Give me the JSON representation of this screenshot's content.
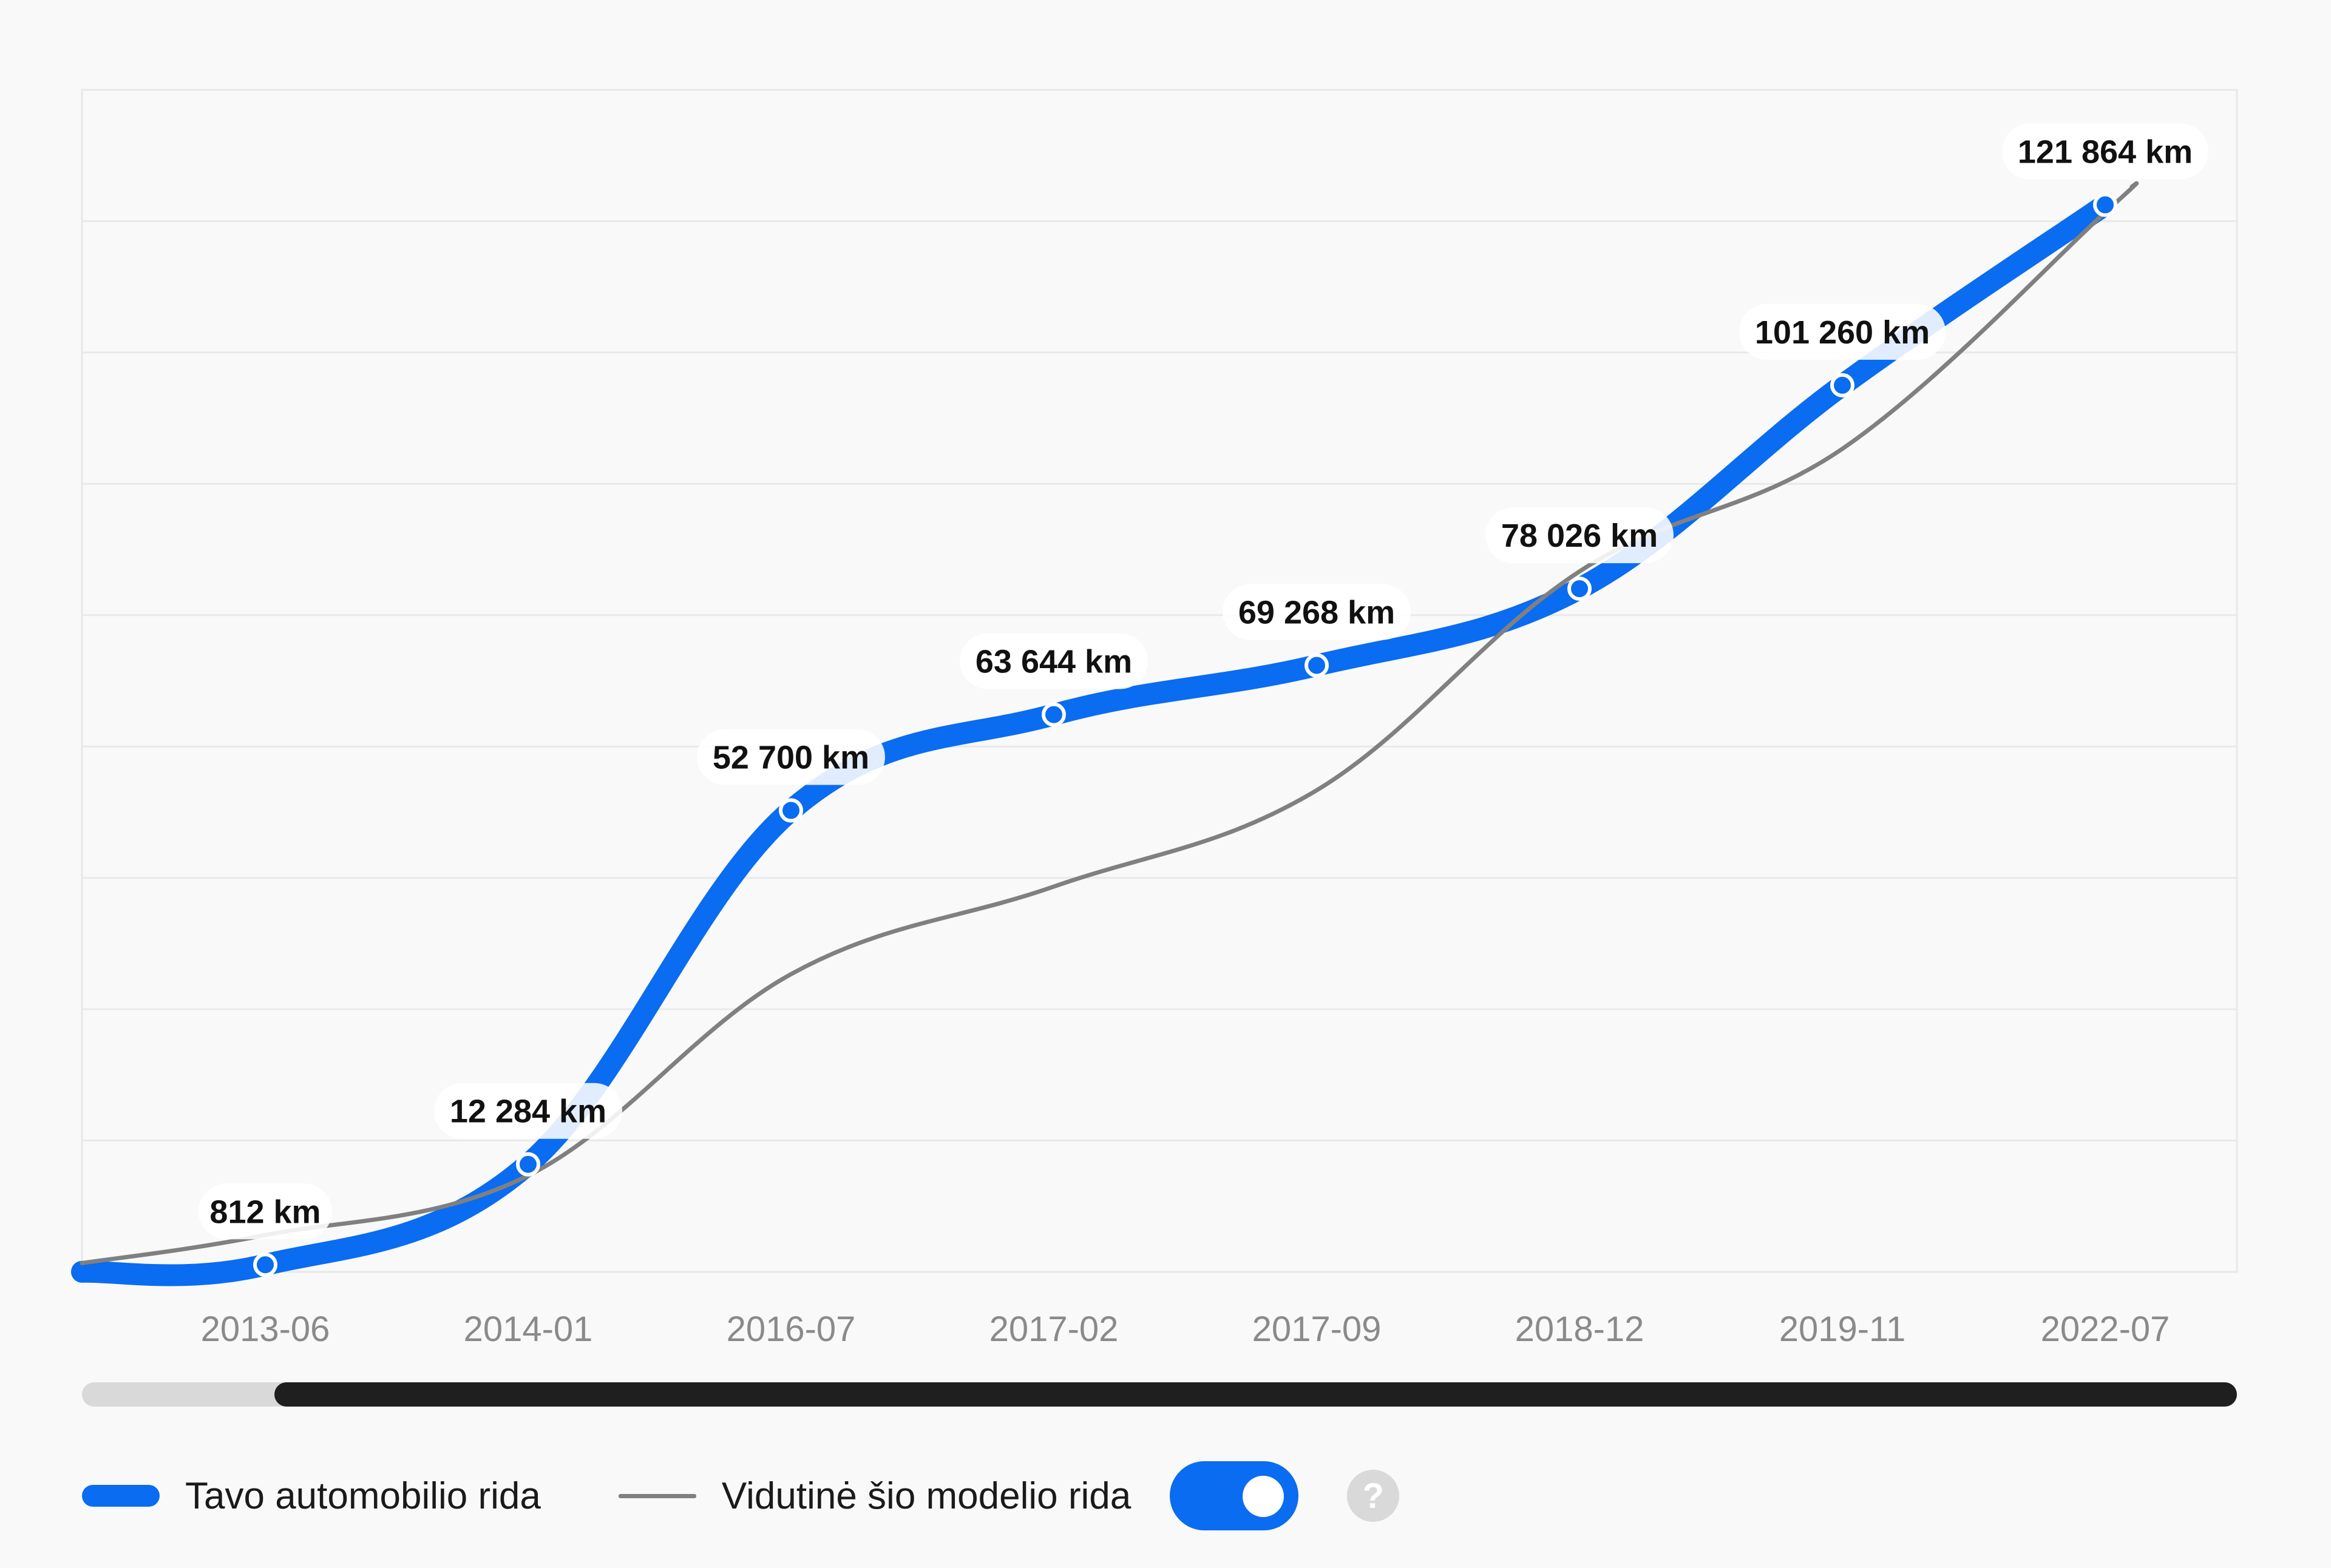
{
  "chart_data": {
    "type": "line",
    "categories": [
      "2013-06",
      "2014-01",
      "2016-07",
      "2017-02",
      "2017-09",
      "2018-12",
      "2019-11",
      "2022-07"
    ],
    "series": [
      {
        "name": "Tavo automobilio rida",
        "color": "#0a6cf0",
        "values": [
          812,
          12284,
          52700,
          63644,
          69268,
          78026,
          101260,
          121864
        ],
        "labels": [
          "812 km",
          "12 284 km",
          "52 700 km",
          "63 644 km",
          "69 268 km",
          "78 026 km",
          "101 260 km",
          "121 864 km"
        ]
      },
      {
        "name": "Vidutinė šio modelio rida",
        "color": "#808080",
        "values": [
          4200,
          11000,
          34000,
          44000,
          55000,
          80000,
          94000,
          121000
        ]
      }
    ],
    "ylim": [
      0,
      135000
    ],
    "grid": true,
    "legend": "bottom-left"
  },
  "legend": {
    "user_label": "Tavo automobilio rida",
    "avg_label": "Vidutinė šio modelio rida"
  },
  "controls": {
    "toggle_on": true,
    "help_symbol": "?"
  },
  "icons": {
    "help": "question-mark-icon"
  },
  "colors": {
    "primary": "#0a6cf0",
    "average": "#808080",
    "scrollbar_thumb": "#1f1f1f",
    "scrollbar_track": "#d9d9d9"
  }
}
